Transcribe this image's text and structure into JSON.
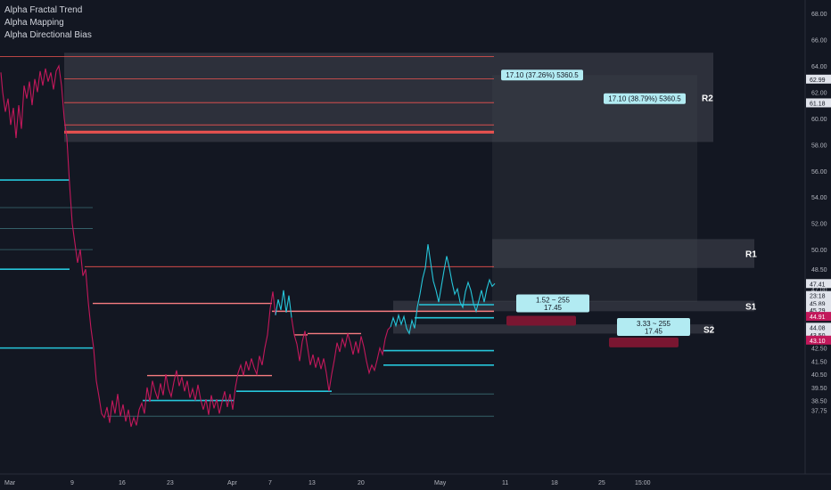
{
  "legend": {
    "items": [
      "Alpha Fractal Trend",
      "Alpha Mapping",
      "Alpha Directional Bias"
    ]
  },
  "colors": {
    "background": "#131722",
    "cyan": "#26c6da",
    "pink": "#c2185b",
    "red": "#ef5350",
    "zone": "#434651",
    "label_bg": "#b2ebf2",
    "red_box": "#7a1631",
    "price_tag_light": "#e0e3eb",
    "price_tag_pink": "#c2185b"
  },
  "chart_data": {
    "type": "line",
    "title": "",
    "y_range": [
      37.0,
      69.0
    ],
    "y_ticks": [
      "68.00",
      "66.00",
      "64.00",
      "62.00",
      "60.00",
      "58.00",
      "56.00",
      "54.00",
      "52.00",
      "50.00",
      "48.50",
      "47.00",
      "45.50",
      "44.00",
      "43.50",
      "42.50",
      "41.50",
      "40.50",
      "39.50",
      "38.50",
      "37.75"
    ],
    "x_tick_labels": [
      "Mar",
      "9",
      "16",
      "23",
      "Apr",
      "7",
      "13",
      "20",
      "May",
      "11",
      "18",
      "25",
      "15:00"
    ],
    "price_tags": [
      {
        "label": "62.99",
        "value": 62.99,
        "style": "light"
      },
      {
        "label": "61.18",
        "value": 61.18,
        "style": "light"
      },
      {
        "label": "47.41",
        "value": 47.41,
        "style": "light"
      },
      {
        "label": "23:18",
        "value": 46.5,
        "style": "light"
      },
      {
        "label": "45.89",
        "value": 45.89,
        "style": "light"
      },
      {
        "label": "45.29",
        "value": 45.4,
        "style": "light"
      },
      {
        "label": "44.91",
        "value": 44.91,
        "style": "pink"
      },
      {
        "label": "44.08",
        "value": 44.08,
        "style": "light"
      },
      {
        "label": "43.50",
        "value": 43.5,
        "style": "light"
      },
      {
        "label": "43.10",
        "value": 43.1,
        "style": "pink"
      }
    ],
    "zones": [
      {
        "label": "R2",
        "top": 65.0,
        "bottom": 58.2
      },
      {
        "label": "R1",
        "top": 50.8,
        "bottom": 48.6
      },
      {
        "label": "S1",
        "top": 46.1,
        "bottom": 45.3
      },
      {
        "label": "S2",
        "top": 44.3,
        "bottom": 43.6
      }
    ],
    "annotations": [
      {
        "text": "17.10 (37.26%) 5360.5",
        "value": 63.3
      },
      {
        "text": "17.10 (38.79%) 5360.5",
        "value": 61.5
      },
      {
        "text": "1.52 ~ 255",
        "subtext": "17.45",
        "value": 45.9
      },
      {
        "text": "3.33 ~ 255",
        "subtext": "17.45",
        "value": 44.1
      }
    ],
    "red_lines": [
      64.7,
      63.0,
      61.2,
      59.5,
      59.0,
      58.9,
      48.7
    ],
    "price_series": [
      {
        "segment": "pink",
        "points": [
          [
            1,
            63.5
          ],
          [
            3,
            62.0
          ],
          [
            6,
            60.5
          ],
          [
            9,
            61.5
          ],
          [
            12,
            59.5
          ],
          [
            15,
            60.8
          ],
          [
            18,
            58.5
          ],
          [
            21,
            61.0
          ],
          [
            24,
            59.2
          ],
          [
            27,
            62.5
          ],
          [
            30,
            61.5
          ],
          [
            33,
            62.8
          ],
          [
            36,
            61.0
          ],
          [
            39,
            63.0
          ],
          [
            42,
            62.0
          ],
          [
            45,
            63.6
          ],
          [
            48,
            62.5
          ],
          [
            51,
            63.8
          ],
          [
            54,
            62.8
          ],
          [
            57,
            63.5
          ],
          [
            60,
            62.2
          ],
          [
            63,
            63.6
          ],
          [
            66,
            64.0
          ],
          [
            69,
            62.5
          ],
          [
            72,
            60.0
          ],
          [
            75,
            58.5
          ],
          [
            78,
            55.0
          ],
          [
            81,
            52.0
          ],
          [
            84,
            50.5
          ],
          [
            87,
            49.0
          ],
          [
            90,
            50.0
          ],
          [
            93,
            48.0
          ],
          [
            96,
            48.5
          ],
          [
            99,
            46.0
          ],
          [
            102,
            44.0
          ],
          [
            105,
            42.5
          ],
          [
            108,
            40.0
          ],
          [
            111,
            38.8
          ],
          [
            114,
            37.5
          ],
          [
            117,
            37.2
          ],
          [
            120,
            38.0
          ],
          [
            123,
            36.8
          ],
          [
            126,
            38.5
          ],
          [
            129,
            37.5
          ],
          [
            132,
            39.0
          ],
          [
            135,
            37.3
          ],
          [
            138,
            38.2
          ],
          [
            141,
            36.9
          ],
          [
            144,
            37.8
          ],
          [
            147,
            36.5
          ],
          [
            150,
            37.2
          ],
          [
            153,
            36.6
          ],
          [
            156,
            37.8
          ],
          [
            159,
            38.3
          ],
          [
            162,
            37.5
          ],
          [
            165,
            39.5
          ],
          [
            168,
            38.4
          ],
          [
            171,
            40.0
          ],
          [
            174,
            39.2
          ],
          [
            177,
            38.6
          ],
          [
            180,
            39.8
          ],
          [
            183,
            38.9
          ],
          [
            186,
            40.5
          ],
          [
            189,
            39.4
          ],
          [
            192,
            38.8
          ],
          [
            195,
            39.9
          ],
          [
            198,
            40.8
          ],
          [
            201,
            39.6
          ],
          [
            204,
            40.3
          ],
          [
            207,
            39.2
          ],
          [
            210,
            40.0
          ],
          [
            213,
            38.7
          ],
          [
            216,
            39.4
          ],
          [
            219,
            38.5
          ],
          [
            222,
            39.7
          ],
          [
            225,
            38.6
          ],
          [
            228,
            37.8
          ],
          [
            231,
            38.6
          ],
          [
            234,
            37.4
          ],
          [
            237,
            38.9
          ],
          [
            240,
            37.9
          ],
          [
            243,
            38.6
          ],
          [
            246,
            37.5
          ],
          [
            249,
            38.4
          ],
          [
            252,
            39.2
          ],
          [
            255,
            38.0
          ],
          [
            258,
            39.0
          ],
          [
            261,
            37.8
          ],
          [
            264,
            39.5
          ],
          [
            267,
            40.6
          ],
          [
            270,
            41.2
          ],
          [
            273,
            40.4
          ],
          [
            276,
            41.5
          ],
          [
            279,
            40.8
          ],
          [
            282,
            41.7
          ],
          [
            285,
            41.0
          ],
          [
            288,
            40.5
          ],
          [
            291,
            41.9
          ],
          [
            294,
            41.2
          ],
          [
            297,
            42.5
          ],
          [
            300,
            43.5
          ],
          [
            303,
            45.5
          ],
          [
            306,
            46.8
          ],
          [
            309,
            45.0
          ]
        ]
      },
      {
        "segment": "cyan",
        "points": [
          [
            309,
            45.0
          ],
          [
            312,
            46.2
          ],
          [
            315,
            45.4
          ],
          [
            318,
            46.9
          ],
          [
            321,
            45.2
          ],
          [
            324,
            46.5
          ],
          [
            327,
            44.8
          ]
        ]
      },
      {
        "segment": "pink",
        "points": [
          [
            327,
            44.8
          ],
          [
            330,
            43.5
          ],
          [
            333,
            42.8
          ],
          [
            336,
            41.5
          ],
          [
            339,
            43.0
          ],
          [
            342,
            43.8
          ],
          [
            345,
            42.5
          ],
          [
            348,
            41.2
          ],
          [
            351,
            42.0
          ],
          [
            354,
            41.0
          ],
          [
            357,
            41.8
          ],
          [
            360,
            40.9
          ],
          [
            363,
            41.7
          ],
          [
            366,
            40.6
          ],
          [
            369,
            39.2
          ],
          [
            372,
            40.5
          ],
          [
            375,
            41.6
          ],
          [
            378,
            42.9
          ],
          [
            381,
            42.2
          ],
          [
            384,
            43.2
          ],
          [
            387,
            42.6
          ],
          [
            390,
            43.6
          ],
          [
            393,
            42.9
          ],
          [
            396,
            42.0
          ],
          [
            399,
            43.0
          ],
          [
            402,
            42.1
          ],
          [
            405,
            43.4
          ],
          [
            408,
            42.6
          ],
          [
            411,
            41.5
          ],
          [
            414,
            40.6
          ],
          [
            417,
            41.2
          ],
          [
            420,
            40.8
          ],
          [
            423,
            41.6
          ],
          [
            426,
            42.5
          ],
          [
            429,
            42.0
          ],
          [
            432,
            43.2
          ],
          [
            435,
            43.9
          ],
          [
            438,
            44.1
          ]
        ]
      },
      {
        "segment": "cyan",
        "points": [
          [
            438,
            44.1
          ],
          [
            441,
            44.8
          ],
          [
            444,
            44.2
          ],
          [
            447,
            45.0
          ],
          [
            450,
            44.3
          ],
          [
            453,
            44.9
          ],
          [
            456,
            44.0
          ],
          [
            459,
            43.6
          ],
          [
            462,
            44.6
          ],
          [
            465,
            44.0
          ],
          [
            468,
            45.6
          ],
          [
            471,
            46.6
          ],
          [
            474,
            47.8
          ],
          [
            477,
            48.6
          ],
          [
            480,
            50.4
          ],
          [
            483,
            49.0
          ],
          [
            486,
            47.6
          ],
          [
            489,
            46.9
          ],
          [
            492,
            46.0
          ],
          [
            495,
            47.2
          ],
          [
            498,
            48.4
          ],
          [
            501,
            49.5
          ],
          [
            504,
            48.6
          ],
          [
            507,
            47.5
          ],
          [
            510,
            46.6
          ],
          [
            513,
            47.0
          ],
          [
            516,
            46.0
          ],
          [
            519,
            45.6
          ],
          [
            522,
            46.8
          ],
          [
            525,
            47.5
          ],
          [
            528,
            46.9
          ],
          [
            531,
            45.9
          ],
          [
            534,
            45.3
          ],
          [
            537,
            46.1
          ],
          [
            540,
            46.9
          ],
          [
            543,
            46.0
          ],
          [
            546,
            47.0
          ],
          [
            549,
            47.7
          ],
          [
            552,
            47.2
          ],
          [
            555,
            47.41
          ]
        ]
      }
    ]
  }
}
